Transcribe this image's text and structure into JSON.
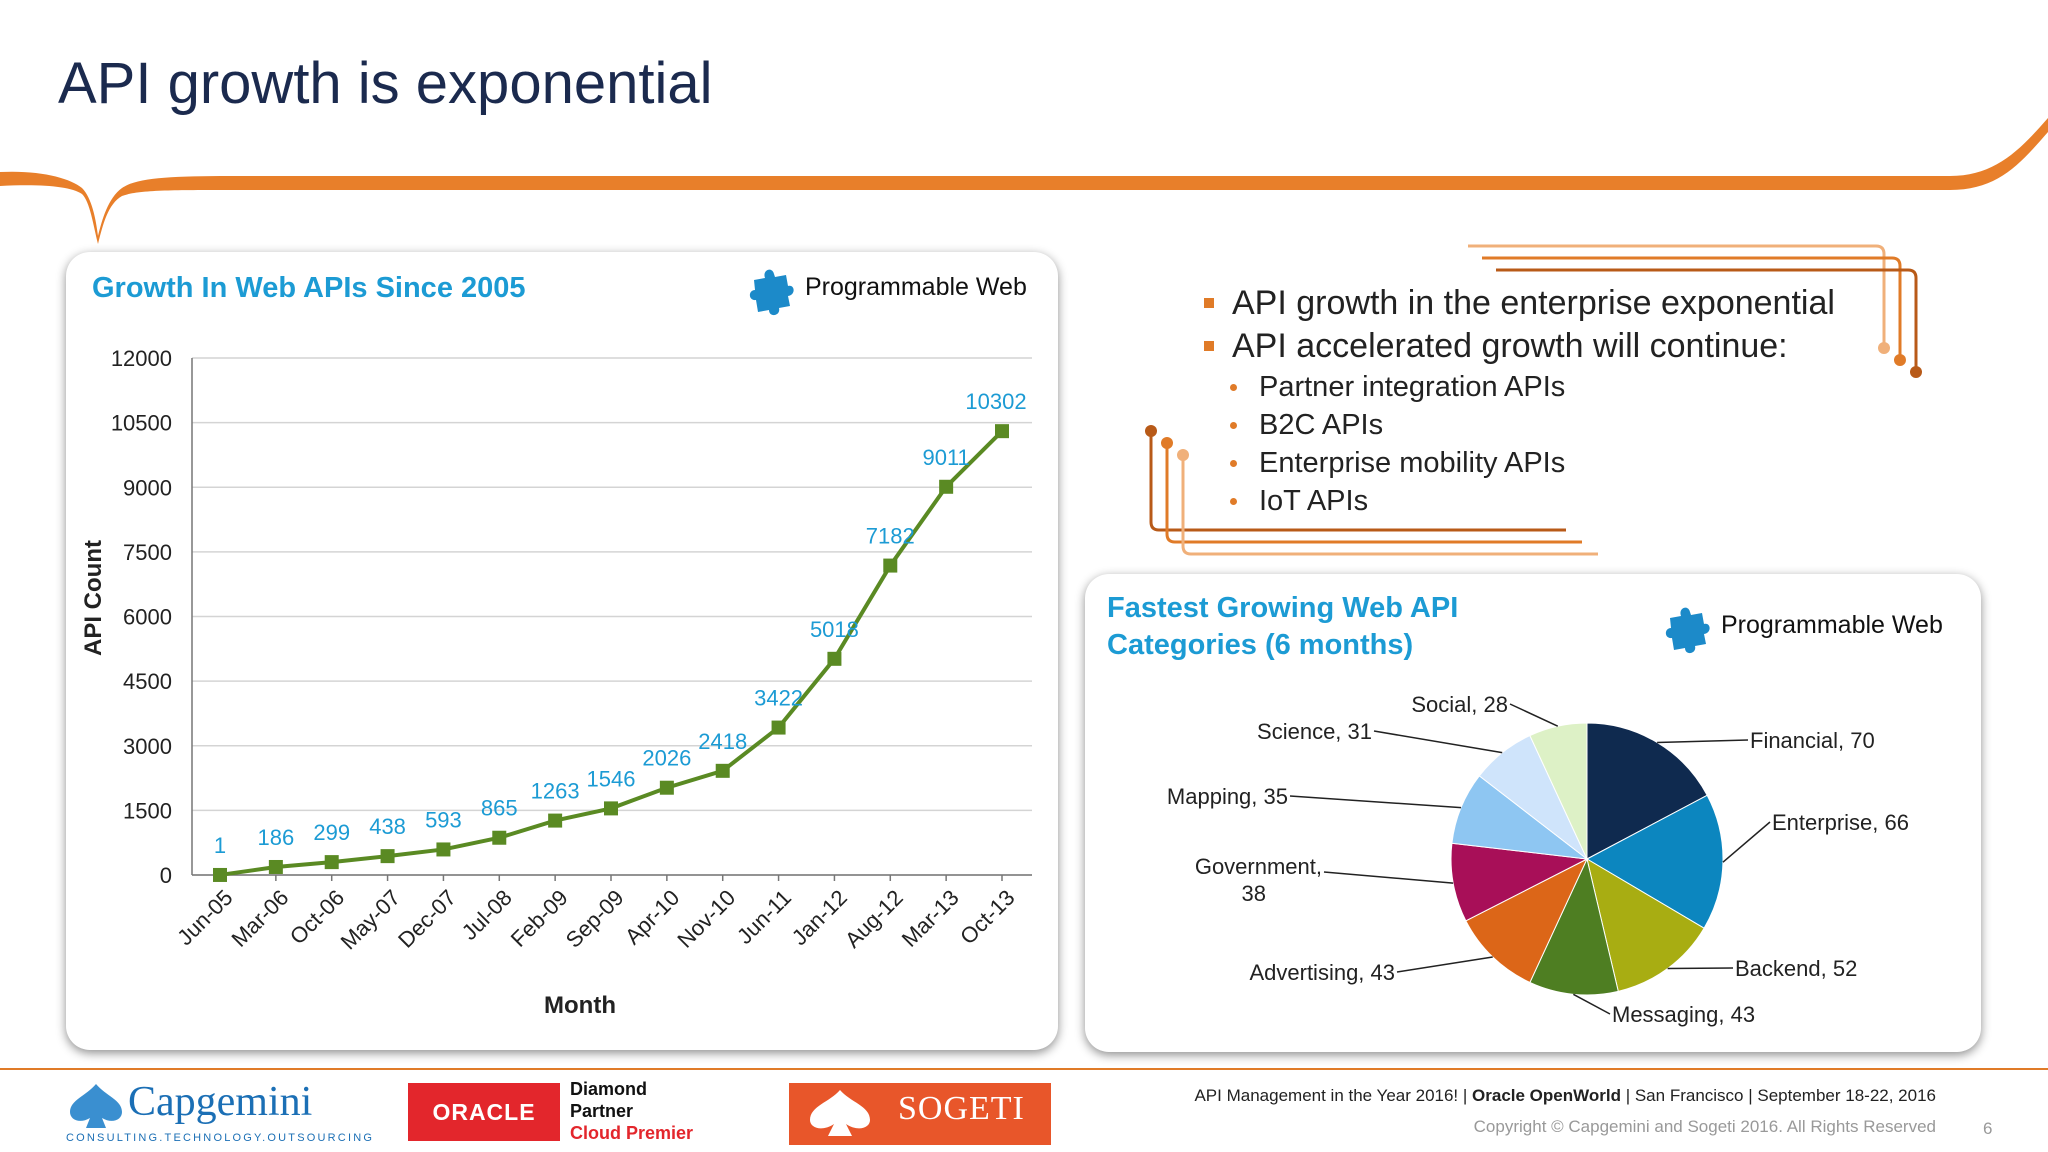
{
  "slide": {
    "title": "API growth is exponential",
    "accent_color": "#e07b28",
    "page_number": "6"
  },
  "left_panel": {
    "title": "Growth In Web APIs Since 2005",
    "source_label": "Programmable Web",
    "source_icon": "puzzle-piece-icon"
  },
  "right_panel": {
    "title_line1": "Fastest Growing Web API",
    "title_line2": "Categories (6 months)",
    "source_label": "Programmable Web",
    "source_icon": "puzzle-piece-icon"
  },
  "bullets": {
    "level1": [
      "API growth in the enterprise exponential",
      "API accelerated growth will continue:"
    ],
    "level2": [
      "Partner integration APIs",
      "B2C APIs",
      "Enterprise mobility APIs",
      "IoT APIs"
    ]
  },
  "chart_data": [
    {
      "type": "line",
      "title": "Growth In Web APIs Since 2005",
      "xlabel": "Month",
      "ylabel": "API Count",
      "categories": [
        "Jun-05",
        "Mar-06",
        "Oct-06",
        "May-07",
        "Dec-07",
        "Jul-08",
        "Feb-09",
        "Sep-09",
        "Apr-10",
        "Nov-10",
        "Jun-11",
        "Jan-12",
        "Aug-12",
        "Mar-13",
        "Oct-13"
      ],
      "series": [
        {
          "values": [
            1,
            186,
            299,
            438,
            593,
            865,
            1263,
            1546,
            2026,
            2418,
            3422,
            5018,
            7182,
            9011,
            10302
          ],
          "color": "#5a8a23"
        }
      ],
      "ylim": [
        0,
        12000
      ],
      "yticks": [
        0,
        1500,
        3000,
        4500,
        6000,
        7500,
        9000,
        10500,
        12000
      ],
      "grid": true,
      "data_label_color": "#1c9bd4"
    },
    {
      "type": "pie",
      "title": "Fastest Growing Web API Categories (6 months)",
      "slices": [
        {
          "label": "Financial, 70",
          "value": 70,
          "color": "#0f2a4f"
        },
        {
          "label": "Enterprise, 66",
          "value": 66,
          "color": "#0c86bf"
        },
        {
          "label": "Backend, 52",
          "value": 52,
          "color": "#a8ad12"
        },
        {
          "label": "Messaging, 43",
          "value": 43,
          "color": "#4e7e22"
        },
        {
          "label": "Advertising, 43",
          "value": 43,
          "color": "#dc6618"
        },
        {
          "label": "Government, 38",
          "value": 38,
          "color": "#a80f58"
        },
        {
          "label": "Mapping, 35",
          "value": 35,
          "color": "#8ec6f2"
        },
        {
          "label": "Science, 31",
          "value": 31,
          "color": "#cfe4fb"
        },
        {
          "label": "Social, 28",
          "value": 28,
          "color": "#ddf1c6"
        }
      ]
    }
  ],
  "footer": {
    "event_prefix": "API Management in the Year 2016! | ",
    "event_bold": "Oracle OpenWorld",
    "event_suffix": " | San Francisco | September 18-22, 2016",
    "copyright": "Copyright © Capgemini and Sogeti 2016. All Rights Reserved"
  },
  "logos": {
    "capgemini": "Capgemini",
    "capgemini_tagline": "CONSULTING.TECHNOLOGY.OUTSOURCING",
    "oracle": "ORACLE",
    "oracle_partner_line1": "Diamond",
    "oracle_partner_line2": "Partner",
    "oracle_partner_line3": "Cloud Premier",
    "sogeti": "SOGETI"
  }
}
